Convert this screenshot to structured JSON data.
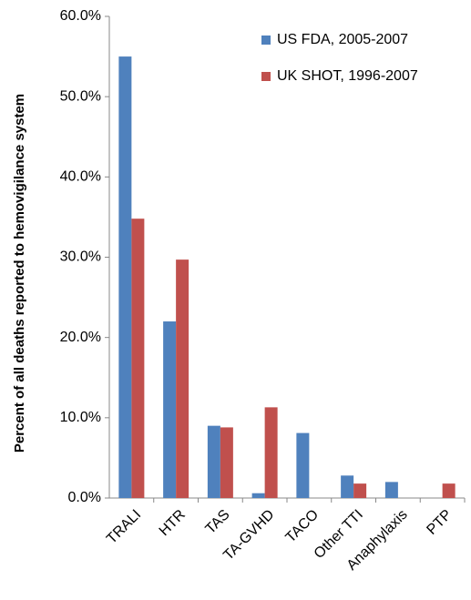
{
  "chart_data": {
    "type": "bar",
    "y_label": "Percent of all deaths reported to hemovigilance system",
    "categories": [
      "TRALI",
      "HTR",
      "TAS",
      "TA-GVHD",
      "TACO",
      "Other TTI",
      "Anaphylaxis",
      "PTP"
    ],
    "series": [
      {
        "name": "US FDA, 2005-2007",
        "color": "#4f81bd",
        "values": [
          55,
          22,
          9,
          0.6,
          8.1,
          2.8,
          2,
          0
        ]
      },
      {
        "name": "UK SHOT, 1996-2007",
        "color": "#c0504d",
        "values": [
          34.8,
          29.7,
          8.8,
          11.3,
          0,
          1.8,
          0,
          1.8
        ]
      }
    ],
    "ylim": [
      0,
      60
    ],
    "yticks": [
      {
        "value": 0,
        "label": "0.0%"
      },
      {
        "value": 10,
        "label": "10.0%"
      },
      {
        "value": 20,
        "label": "20.0%"
      },
      {
        "value": 30,
        "label": "30.0%"
      },
      {
        "value": 40,
        "label": "40.0%"
      },
      {
        "value": 50,
        "label": "50.0%"
      },
      {
        "value": 60,
        "label": "60.0%"
      }
    ],
    "legend": "upper right",
    "grid": false
  }
}
